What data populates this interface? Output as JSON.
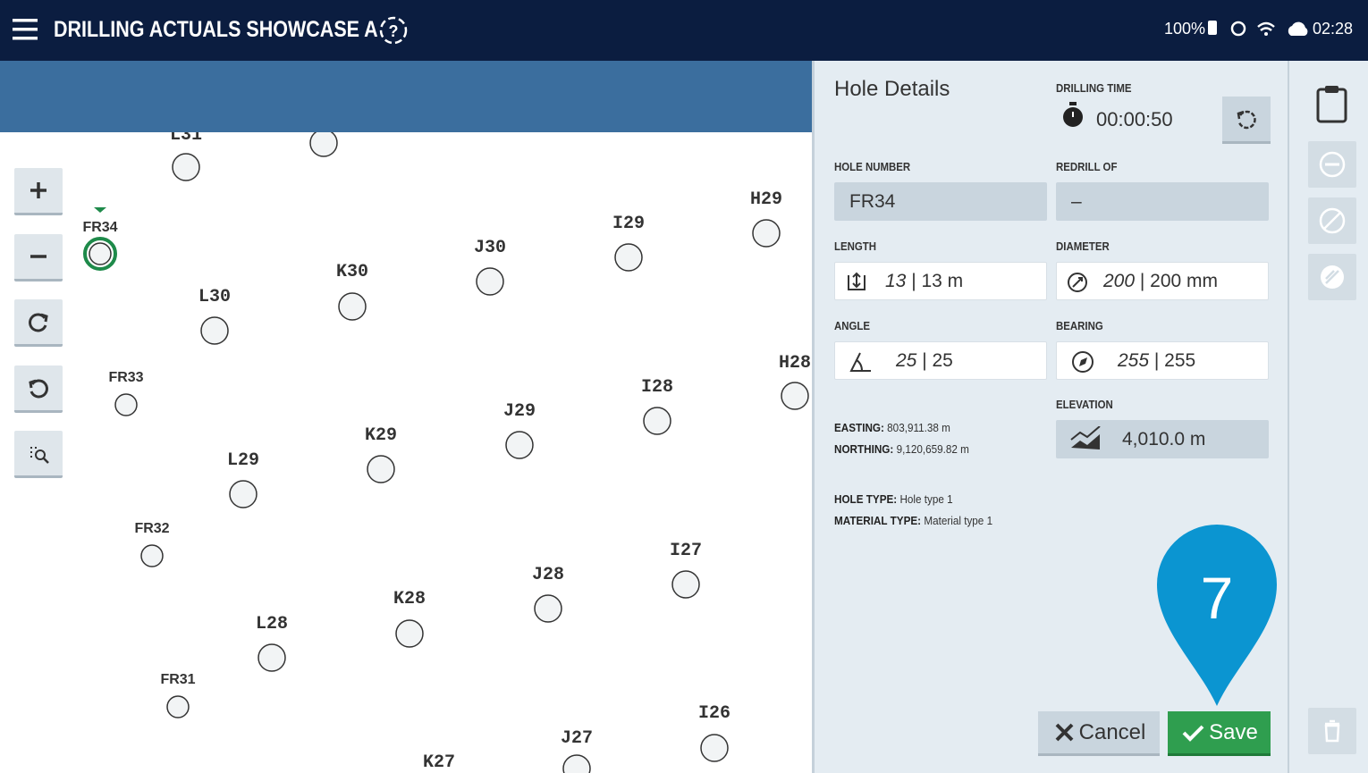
{
  "header": {
    "title": "DRILLING ACTUALS SHOWCASE A",
    "battery": "100%",
    "time": "02:28"
  },
  "map": {
    "holes": [
      "L31",
      "FR34",
      "L30",
      "K30",
      "J30",
      "I29",
      "H29",
      "FR33",
      "L29",
      "K29",
      "J29",
      "I28",
      "H28",
      "FR32",
      "L28",
      "K28",
      "J28",
      "I27",
      "FR31",
      "I26",
      "J27",
      "K27"
    ]
  },
  "panel": {
    "title": "Hole Details",
    "drilling_time": {
      "label": "DRILLING TIME",
      "value": "00:00:50"
    },
    "hole_number": {
      "label": "HOLE NUMBER",
      "value": "FR34"
    },
    "redrill_of": {
      "label": "REDRILL OF",
      "value": "–"
    },
    "length": {
      "label": "LENGTH",
      "actual": "13",
      "planned": "| 13 m"
    },
    "diameter": {
      "label": "DIAMETER",
      "actual": "200",
      "planned": "| 200 mm"
    },
    "angle": {
      "label": "ANGLE",
      "actual": "25",
      "planned": "| 25"
    },
    "bearing": {
      "label": "BEARING",
      "actual": "255",
      "planned": "| 255"
    },
    "elevation": {
      "label": "ELEVATION",
      "value": "4,010.0 m"
    },
    "easting": {
      "label": "EASTING:",
      "value": "803,911.38 m"
    },
    "northing": {
      "label": "NORTHING:",
      "value": "9,120,659.82 m"
    },
    "hole_type": {
      "label": "HOLE TYPE:",
      "value": "Hole type 1"
    },
    "material_type": {
      "label": "MATERIAL TYPE:",
      "value": "Material type 1"
    },
    "cancel": "Cancel",
    "save": "Save"
  },
  "marker": "7"
}
